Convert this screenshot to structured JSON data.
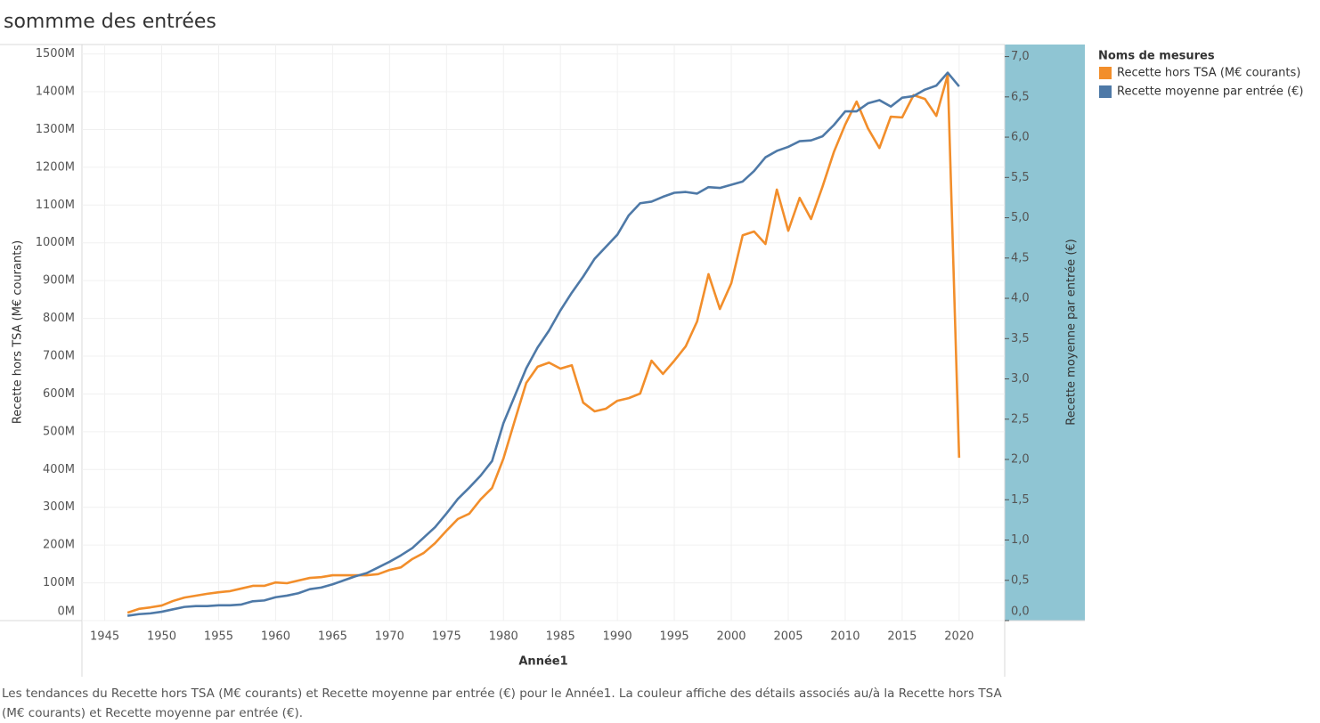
{
  "chart_data": {
    "type": "line",
    "title": "sommme des entrées",
    "x_label": "Année1",
    "y_label": "Recette hors TSA (M€ courants)",
    "y2_label": "Recette moyenne par entrée (€)",
    "legend_title": "Noms de mesures",
    "legend_position": "right",
    "caption": "Les tendances du Recette hors TSA (M€ courants) et Recette moyenne par entrée (€) pour le Année1.  La couleur affiche des détails associés au/à la Recette hors TSA (M€ courants) et Recette moyenne par entrée (€).",
    "grid": true,
    "x": [
      1947,
      1948,
      1949,
      1950,
      1951,
      1952,
      1953,
      1954,
      1955,
      1956,
      1957,
      1958,
      1959,
      1960,
      1961,
      1962,
      1963,
      1964,
      1965,
      1966,
      1967,
      1968,
      1969,
      1970,
      1971,
      1972,
      1973,
      1974,
      1975,
      1976,
      1977,
      1978,
      1979,
      1980,
      1981,
      1982,
      1983,
      1984,
      1985,
      1986,
      1987,
      1988,
      1989,
      1990,
      1991,
      1992,
      1993,
      1994,
      1995,
      1996,
      1997,
      1998,
      1999,
      2000,
      2001,
      2002,
      2003,
      2004,
      2005,
      2006,
      2007,
      2008,
      2009,
      2010,
      2011,
      2012,
      2013,
      2014,
      2015,
      2016,
      2017,
      2018,
      2019,
      2020
    ],
    "xlim": [
      1943,
      2024
    ],
    "xticks": [
      1945,
      1950,
      1955,
      1960,
      1965,
      1970,
      1975,
      1980,
      1985,
      1990,
      1995,
      2000,
      2005,
      2010,
      2015,
      2020
    ],
    "ylim": [
      0,
      1525
    ],
    "yticks": [
      {
        "value": 0,
        "label": "0M"
      },
      {
        "value": 100,
        "label": "100M"
      },
      {
        "value": 200,
        "label": "200M"
      },
      {
        "value": 300,
        "label": "300M"
      },
      {
        "value": 400,
        "label": "400M"
      },
      {
        "value": 500,
        "label": "500M"
      },
      {
        "value": 600,
        "label": "600M"
      },
      {
        "value": 700,
        "label": "700M"
      },
      {
        "value": 800,
        "label": "800M"
      },
      {
        "value": 900,
        "label": "900M"
      },
      {
        "value": 1000,
        "label": "1000M"
      },
      {
        "value": 1100,
        "label": "1100M"
      },
      {
        "value": 1200,
        "label": "1200M"
      },
      {
        "value": 1300,
        "label": "1300M"
      },
      {
        "value": 1400,
        "label": "1400M"
      },
      {
        "value": 1500,
        "label": "1500M"
      }
    ],
    "y2lim": [
      0,
      7.15
    ],
    "y2ticks": [
      {
        "value": 0,
        "label": "0,0"
      },
      {
        "value": 0.5,
        "label": "0,5"
      },
      {
        "value": 1,
        "label": "1,0"
      },
      {
        "value": 1.5,
        "label": "1,5"
      },
      {
        "value": 2,
        "label": "2,0"
      },
      {
        "value": 2.5,
        "label": "2,5"
      },
      {
        "value": 3,
        "label": "3,0"
      },
      {
        "value": 3.5,
        "label": "3,5"
      },
      {
        "value": 4,
        "label": "4,0"
      },
      {
        "value": 4.5,
        "label": "4,5"
      },
      {
        "value": 5,
        "label": "5,0"
      },
      {
        "value": 5.5,
        "label": "5,5"
      },
      {
        "value": 6,
        "label": "6,0"
      },
      {
        "value": 6.5,
        "label": "6,5"
      },
      {
        "value": 7,
        "label": "7,0"
      }
    ],
    "series": [
      {
        "name": "Recette hors TSA (M€ courants)",
        "color": "#f28e2b",
        "values": [
          21,
          31,
          35,
          40,
          52,
          61,
          66,
          71,
          75,
          78,
          85,
          92,
          92,
          101,
          99,
          106,
          113,
          115,
          120,
          120,
          120,
          120,
          123,
          134,
          141,
          163,
          179,
          205,
          238,
          269,
          283,
          321,
          351,
          429,
          530,
          629,
          672,
          683,
          667,
          676,
          577,
          554,
          561,
          582,
          589,
          601,
          688,
          653,
          688,
          726,
          792,
          917,
          825,
          893,
          1020,
          1030,
          997,
          1141,
          1032,
          1119,
          1063,
          1148,
          1240,
          1313,
          1374,
          1303,
          1251,
          1334,
          1332,
          1391,
          1381,
          1336,
          1445,
          431
        ]
      },
      {
        "name": "Recette moyenne par entrée (€)",
        "color": "#4e79a7",
        "axis": "y2",
        "values": [
          0.06,
          0.08,
          0.09,
          0.11,
          0.14,
          0.17,
          0.18,
          0.18,
          0.19,
          0.19,
          0.2,
          0.24,
          0.25,
          0.29,
          0.31,
          0.34,
          0.39,
          0.41,
          0.45,
          0.5,
          0.55,
          0.59,
          0.66,
          0.73,
          0.81,
          0.9,
          1.03,
          1.16,
          1.33,
          1.51,
          1.65,
          1.8,
          1.98,
          2.45,
          2.79,
          3.13,
          3.39,
          3.6,
          3.85,
          4.07,
          4.27,
          4.49,
          4.64,
          4.79,
          5.03,
          5.18,
          5.2,
          5.26,
          5.31,
          5.32,
          5.3,
          5.38,
          5.37,
          5.41,
          5.45,
          5.58,
          5.75,
          5.83,
          5.88,
          5.95,
          5.96,
          6.01,
          6.15,
          6.32,
          6.32,
          6.42,
          6.46,
          6.38,
          6.49,
          6.51,
          6.59,
          6.64,
          6.8,
          6.63
        ]
      }
    ]
  }
}
